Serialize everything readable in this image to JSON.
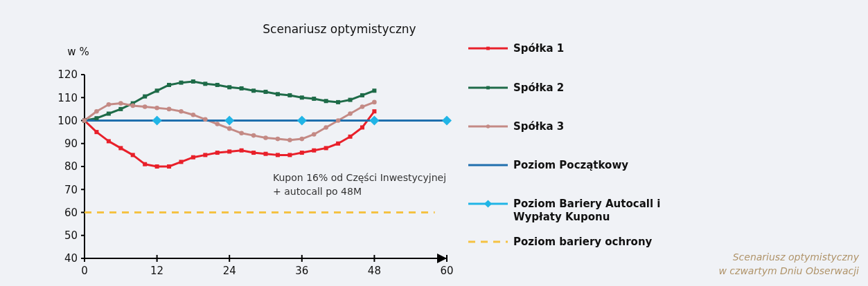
{
  "chart_data": {
    "type": "line",
    "title": "Scenariusz optymistyczny",
    "ylabel": "w %",
    "xlim": [
      0,
      60
    ],
    "xticks": [
      0,
      12,
      24,
      36,
      48,
      60
    ],
    "ylim": [
      40,
      120
    ],
    "yticks": [
      40,
      50,
      60,
      70,
      80,
      90,
      100,
      110,
      120
    ],
    "grid": false,
    "legend": "right",
    "annotations": [
      "Kupon 16% od Części Inwestycyjnej\n+ autocall po 48M",
      "Scenariusz optymistyczny\nw czwartym Dniu Obserwacji"
    ],
    "series": [
      {
        "name": "Spółka 1",
        "color": "#e8202a",
        "marker": "square",
        "x": [
          0,
          2,
          4,
          6,
          8,
          10,
          12,
          14,
          16,
          18,
          20,
          22,
          24,
          26,
          28,
          30,
          32,
          34,
          36,
          38,
          40,
          42,
          44,
          46,
          48
        ],
        "values": [
          100,
          95,
          91,
          88,
          85,
          81,
          80,
          80,
          82,
          84,
          85,
          86,
          86.5,
          87,
          86,
          85.5,
          85,
          85,
          86,
          87,
          88,
          90,
          93,
          97,
          104
        ]
      },
      {
        "name": "Spółka 2",
        "color": "#1e6b48",
        "marker": "square",
        "x": [
          0,
          2,
          4,
          6,
          8,
          10,
          12,
          14,
          16,
          18,
          20,
          22,
          24,
          26,
          28,
          30,
          32,
          34,
          36,
          38,
          40,
          42,
          44,
          46,
          48
        ],
        "values": [
          100,
          101,
          103,
          105,
          107.5,
          110.5,
          113,
          115.5,
          116.5,
          117,
          116,
          115.5,
          114.5,
          114,
          113,
          112.5,
          111.5,
          111,
          110,
          109.5,
          108.5,
          108,
          109,
          111,
          113
        ]
      },
      {
        "name": "Spółka 3",
        "color": "#c48a85",
        "marker": "circle",
        "x": [
          0,
          2,
          4,
          6,
          8,
          10,
          12,
          14,
          16,
          18,
          20,
          22,
          24,
          26,
          28,
          30,
          32,
          34,
          36,
          38,
          40,
          42,
          44,
          46,
          48
        ],
        "values": [
          100,
          104,
          107,
          107.5,
          106.5,
          106,
          105.5,
          105,
          104,
          102.5,
          100.5,
          98.5,
          96.5,
          94.5,
          93.5,
          92.5,
          92,
          91.5,
          92,
          94,
          97,
          100,
          103,
          106,
          108
        ]
      },
      {
        "name": "Poziom Początkowy",
        "color": "#1f6fad",
        "marker": "none",
        "x": [
          0,
          60
        ],
        "values": [
          100,
          100
        ]
      },
      {
        "name": "Poziom Bariery Autocall i Wypłaty Kuponu",
        "type": "scatter",
        "color": "#21b5e6",
        "marker": "diamond",
        "x": [
          12,
          24,
          36,
          48,
          60
        ],
        "values": [
          100,
          100,
          100,
          100,
          100
        ]
      },
      {
        "name": "Poziom bariery ochrony",
        "color": "#f5c242",
        "marker": "none",
        "line_style": "dashed",
        "x": [
          0,
          58
        ],
        "values": [
          60,
          60
        ]
      }
    ]
  }
}
